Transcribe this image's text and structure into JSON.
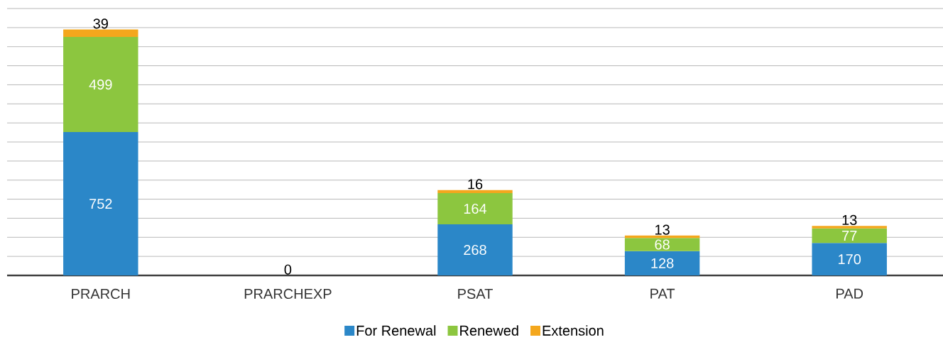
{
  "chart_data": {
    "type": "bar",
    "stacked": true,
    "categories": [
      "PRARCH",
      "PRARCHEXP",
      "PSAT",
      "PAT",
      "PAD"
    ],
    "series": [
      {
        "name": "For Renewal",
        "color": "#2b87c8",
        "values": [
          752,
          null,
          268,
          128,
          170
        ]
      },
      {
        "name": "Renewed",
        "color": "#8cc63f",
        "values": [
          499,
          null,
          164,
          68,
          77
        ]
      },
      {
        "name": "Extension",
        "color": "#f4a71d",
        "values": [
          39,
          0,
          16,
          13,
          13
        ]
      }
    ],
    "tick_labels": "x",
    "grid": "y",
    "legend": "bottom",
    "data_labels": true
  }
}
